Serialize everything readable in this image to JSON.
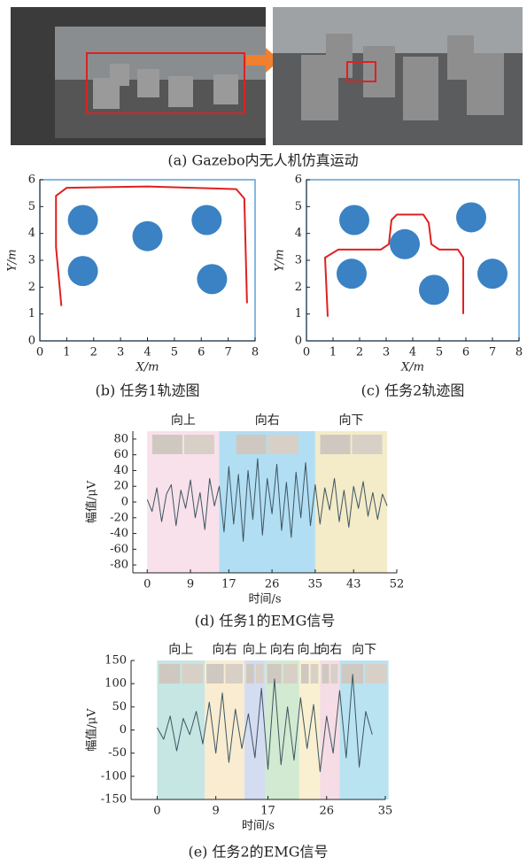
{
  "panel_a": {
    "caption": "(a) Gazebo内无人机仿真运动"
  },
  "chart_data": [
    {
      "type": "line",
      "title": "(b) 任务1轨迹图",
      "xlabel": "X/m",
      "ylabel": "Y/m",
      "xlim": [
        0,
        8
      ],
      "ylim": [
        0,
        6
      ],
      "xticks": [
        0,
        1,
        2,
        3,
        4,
        5,
        6,
        7,
        8
      ],
      "yticks": [
        0,
        1,
        2,
        3,
        4,
        5,
        6
      ],
      "series": [
        {
          "color": "#e02020",
          "x": [
            0.8,
            0.6,
            0.6,
            1.0,
            4.0,
            7.3,
            7.6,
            7.7
          ],
          "y": [
            1.3,
            3.5,
            5.4,
            5.7,
            5.75,
            5.65,
            5.3,
            1.4
          ]
        },
        {
          "color": "#3a82c4",
          "marker": "circle",
          "x": [
            1.6,
            4.0,
            6.2,
            1.6,
            6.4
          ],
          "y": [
            4.5,
            3.9,
            4.5,
            2.6,
            2.3
          ]
        }
      ]
    },
    {
      "type": "line",
      "title": "(c) 任务2轨迹图",
      "xlabel": "X/m",
      "ylabel": "Y/m",
      "xlim": [
        0,
        8
      ],
      "ylim": [
        0,
        6
      ],
      "xticks": [
        0,
        1,
        2,
        3,
        4,
        5,
        6,
        7,
        8
      ],
      "yticks": [
        0,
        1,
        2,
        3,
        4,
        5,
        6
      ],
      "series": [
        {
          "color": "#e02020",
          "x": [
            0.8,
            0.7,
            1.2,
            2.8,
            3.1,
            3.2,
            3.4,
            4.4,
            4.6,
            4.7,
            5.0,
            5.7,
            5.9,
            5.9
          ],
          "y": [
            0.9,
            3.1,
            3.4,
            3.4,
            3.6,
            4.5,
            4.7,
            4.7,
            4.4,
            3.6,
            3.4,
            3.4,
            3.1,
            1.0
          ]
        },
        {
          "color": "#3a82c4",
          "marker": "circle",
          "x": [
            1.8,
            3.7,
            6.2,
            1.7,
            4.8,
            7.0
          ],
          "y": [
            4.5,
            3.6,
            4.6,
            2.5,
            1.9,
            2.5
          ]
        }
      ]
    },
    {
      "type": "emg",
      "title": "(d) 任务1的EMG信号",
      "xlabel": "时间/s",
      "ylabel": "幅值/μV",
      "xlim": [
        -3,
        52
      ],
      "ylim": [
        -90,
        90
      ],
      "xticks": [
        0,
        9,
        17,
        26,
        35,
        43,
        52
      ],
      "yticks": [
        -80,
        -60,
        -40,
        -20,
        0,
        20,
        40,
        60,
        80
      ],
      "regions": [
        {
          "x0": 0,
          "x1": 15,
          "color": "#f6d9e6",
          "label": "向上"
        },
        {
          "x0": 15,
          "x1": 35,
          "color": "#9fd6f0",
          "label": "向右"
        },
        {
          "x0": 35,
          "x1": 50,
          "color": "#f1e6bb",
          "label": "向下"
        }
      ],
      "series": [
        {
          "color": "#3d5560",
          "x": [
            0,
            1,
            2,
            3,
            4,
            5,
            6,
            7,
            8,
            9,
            10,
            11,
            12,
            13,
            14,
            15,
            16,
            17,
            18,
            19,
            20,
            21,
            22,
            23,
            24,
            25,
            26,
            27,
            28,
            29,
            30,
            31,
            32,
            33,
            34,
            35,
            36,
            37,
            38,
            39,
            40,
            41,
            42,
            43,
            44,
            45,
            46,
            47,
            48,
            49,
            50
          ],
          "values": [
            3,
            -12,
            18,
            -25,
            10,
            22,
            -30,
            15,
            -8,
            28,
            -20,
            12,
            -35,
            30,
            -5,
            20,
            -38,
            45,
            -28,
            35,
            -50,
            40,
            -22,
            55,
            -42,
            30,
            -15,
            48,
            -36,
            25,
            -45,
            38,
            -20,
            50,
            -30,
            22,
            -28,
            18,
            -10,
            30,
            -25,
            15,
            -32,
            20,
            -8,
            26,
            -18,
            12,
            -22,
            10,
            -5
          ]
        }
      ]
    },
    {
      "type": "emg",
      "title": "(e) 任务2的EMG信号",
      "xlabel": "时间/s",
      "ylabel": "幅值/μV",
      "xlim": [
        -4,
        35
      ],
      "ylim": [
        -150,
        150
      ],
      "xticks": [
        0,
        9,
        17,
        26,
        35
      ],
      "yticks": [
        -150,
        -100,
        -50,
        0,
        50,
        100,
        150
      ],
      "regions": [
        {
          "x0": 0,
          "x1": 7.3,
          "color": "#b7e0dc",
          "label": "向上"
        },
        {
          "x0": 7.3,
          "x1": 13.4,
          "color": "#f8e7c6",
          "label": "向右"
        },
        {
          "x0": 13.4,
          "x1": 16.6,
          "color": "#c9d3ee",
          "label": "向上"
        },
        {
          "x0": 16.6,
          "x1": 21.8,
          "color": "#c6e5c6",
          "label": "向右"
        },
        {
          "x0": 21.8,
          "x1": 25,
          "color": "#f7ecc6",
          "label": "向上"
        },
        {
          "x0": 25,
          "x1": 28,
          "color": "#f2d3df",
          "label": "向右"
        },
        {
          "x0": 28,
          "x1": 35.5,
          "color": "#a9dcef",
          "label": "向下"
        }
      ],
      "series": [
        {
          "color": "#3d5560",
          "x": [
            0,
            1,
            2,
            3,
            4,
            5,
            6,
            7,
            8,
            9,
            10,
            11,
            12,
            13,
            14,
            15,
            16,
            17,
            18,
            19,
            20,
            21,
            22,
            23,
            24,
            25,
            26,
            27,
            28,
            29,
            30,
            31,
            32,
            33
          ],
          "values": [
            5,
            -20,
            30,
            -45,
            25,
            -10,
            40,
            -30,
            60,
            -50,
            80,
            -70,
            45,
            -40,
            35,
            -60,
            90,
            -85,
            110,
            -75,
            50,
            -65,
            70,
            -40,
            55,
            -90,
            30,
            -50,
            85,
            -60,
            120,
            -80,
            40,
            -10
          ]
        }
      ]
    }
  ]
}
